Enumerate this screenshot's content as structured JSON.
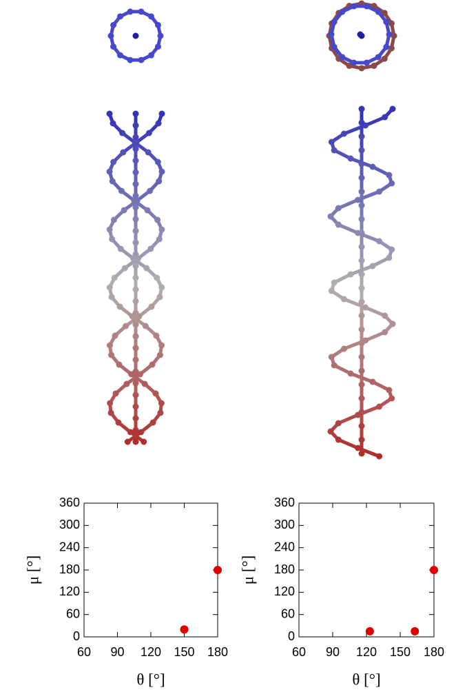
{
  "chart_data": [
    {
      "type": "scatter",
      "x": [
        150,
        180
      ],
      "values": [
        20,
        180
      ],
      "color": "#e00000",
      "xlim": [
        60,
        180
      ],
      "ylim": [
        0,
        360
      ],
      "xticks": [
        60,
        90,
        120,
        150,
        180
      ],
      "yticks": [
        0,
        60,
        120,
        180,
        240,
        300,
        360
      ],
      "xlabel": "θ [°]",
      "ylabel": "μ [°]"
    },
    {
      "type": "scatter",
      "x": [
        123,
        163,
        180
      ],
      "values": [
        15,
        15,
        180
      ],
      "color": "#e00000",
      "xlim": [
        60,
        180
      ],
      "ylim": [
        0,
        360
      ],
      "xticks": [
        60,
        90,
        120,
        150,
        180
      ],
      "yticks": [
        0,
        60,
        120,
        180,
        240,
        300,
        360
      ],
      "xlabel": "θ [°]",
      "ylabel": "μ [°]"
    }
  ]
}
